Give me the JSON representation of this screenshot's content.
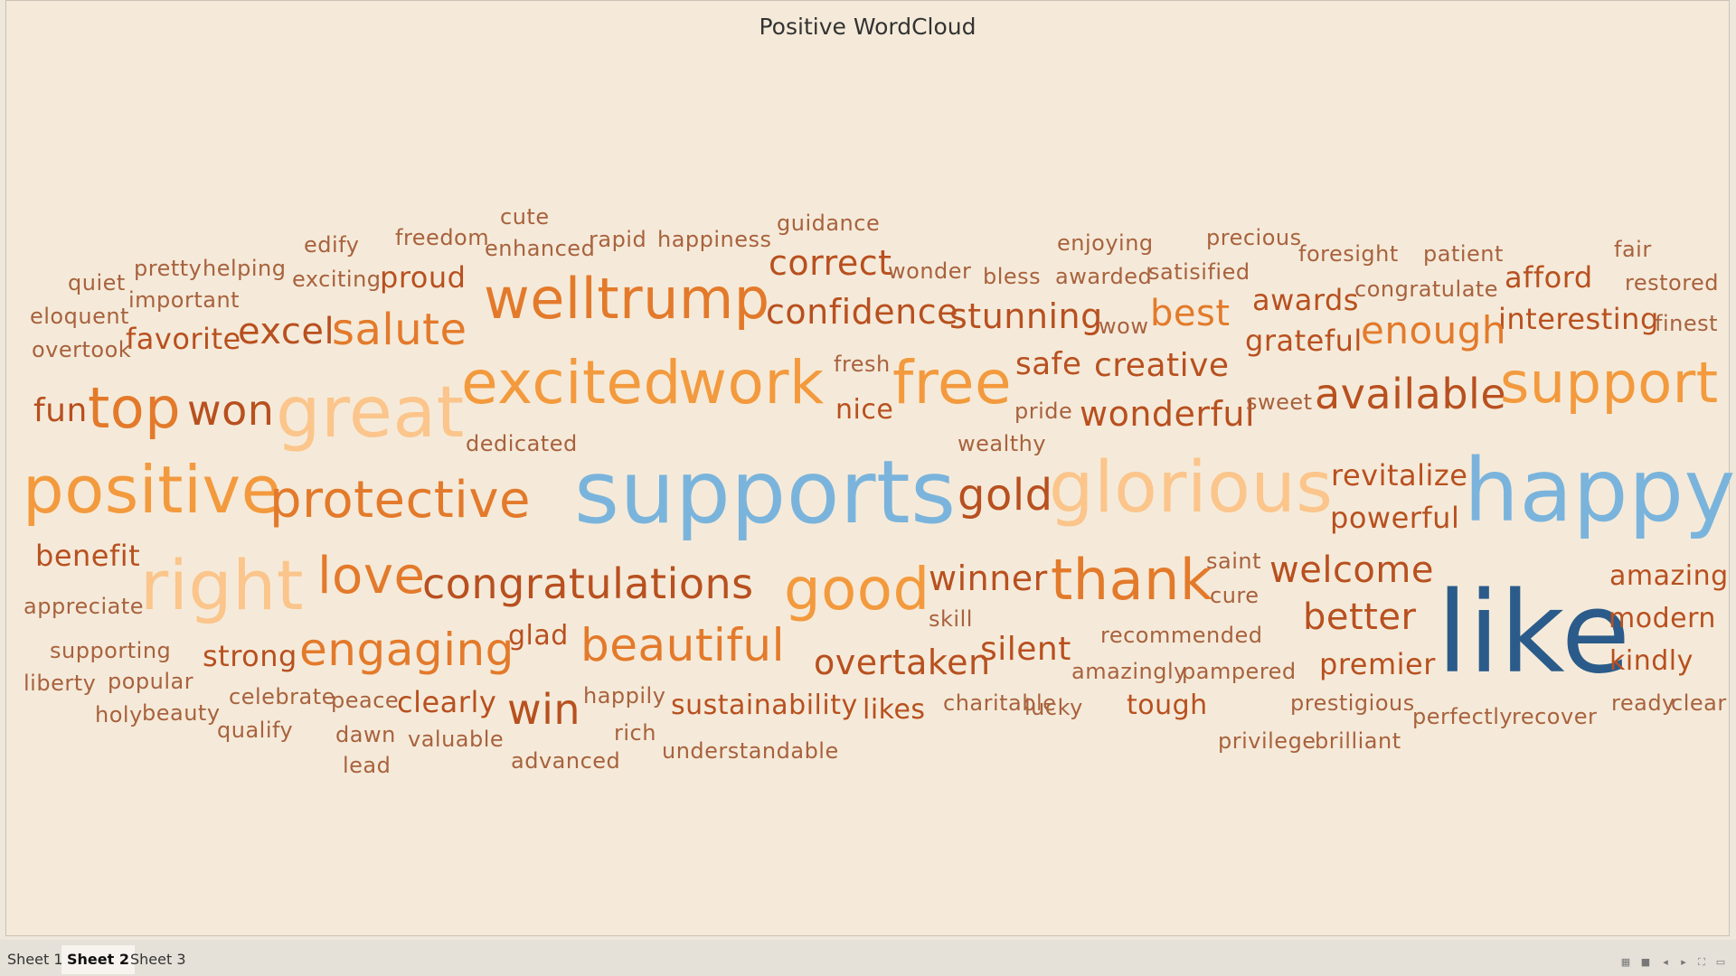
{
  "title": "Positive WordCloud",
  "tabs": [
    {
      "label": "Sheet 1",
      "active": false
    },
    {
      "label": "Sheet 2",
      "active": true
    },
    {
      "label": "Sheet 3",
      "active": false
    }
  ],
  "words": [
    {
      "text": "cute",
      "size": "small"
    },
    {
      "text": "guidance",
      "size": "small"
    },
    {
      "text": "freedom",
      "size": "small"
    },
    {
      "text": "edify",
      "size": "small"
    },
    {
      "text": "enhanced",
      "size": "small"
    },
    {
      "text": "rapid",
      "size": "small"
    },
    {
      "text": "happiness",
      "size": "small"
    },
    {
      "text": "enjoying",
      "size": "small"
    },
    {
      "text": "precious",
      "size": "small"
    },
    {
      "text": "foresight",
      "size": "small"
    },
    {
      "text": "patient",
      "size": "small"
    },
    {
      "text": "fair",
      "size": "small"
    },
    {
      "text": "quiet",
      "size": "small"
    },
    {
      "text": "pretty",
      "size": "small"
    },
    {
      "text": "helping",
      "size": "small"
    },
    {
      "text": "exciting",
      "size": "small"
    },
    {
      "text": "proud",
      "size": "medium"
    },
    {
      "text": "correct",
      "size": "medium"
    },
    {
      "text": "wonder",
      "size": "small"
    },
    {
      "text": "bless",
      "size": "small"
    },
    {
      "text": "awarded",
      "size": "small"
    },
    {
      "text": "satisified",
      "size": "small"
    },
    {
      "text": "congratulate",
      "size": "small"
    },
    {
      "text": "afford",
      "size": "medium"
    },
    {
      "text": "restored",
      "size": "small"
    },
    {
      "text": "important",
      "size": "small"
    },
    {
      "text": "eloquent",
      "size": "small"
    },
    {
      "text": "welltrump",
      "size": "large"
    },
    {
      "text": "confidence",
      "size": "medium"
    },
    {
      "text": "stunning",
      "size": "medium"
    },
    {
      "text": "wow",
      "size": "small"
    },
    {
      "text": "best",
      "size": "medium"
    },
    {
      "text": "awards",
      "size": "medium"
    },
    {
      "text": "interesting",
      "size": "medium"
    },
    {
      "text": "finest",
      "size": "small"
    },
    {
      "text": "favorite",
      "size": "medium"
    },
    {
      "text": "excel",
      "size": "medium"
    },
    {
      "text": "salute",
      "size": "large"
    },
    {
      "text": "overtook",
      "size": "small"
    },
    {
      "text": "grateful",
      "size": "medium"
    },
    {
      "text": "enough",
      "size": "medium"
    },
    {
      "text": "fresh",
      "size": "small"
    },
    {
      "text": "safe",
      "size": "medium"
    },
    {
      "text": "creative",
      "size": "medium"
    },
    {
      "text": "fun",
      "size": "medium"
    },
    {
      "text": "top",
      "size": "large"
    },
    {
      "text": "won",
      "size": "medium"
    },
    {
      "text": "great",
      "size": "xlarge"
    },
    {
      "text": "excited",
      "size": "large"
    },
    {
      "text": "work",
      "size": "large"
    },
    {
      "text": "nice",
      "size": "medium"
    },
    {
      "text": "free",
      "size": "large"
    },
    {
      "text": "pride",
      "size": "small"
    },
    {
      "text": "wonderful",
      "size": "medium"
    },
    {
      "text": "sweet",
      "size": "small"
    },
    {
      "text": "available",
      "size": "large"
    },
    {
      "text": "support",
      "size": "large"
    },
    {
      "text": "dedicated",
      "size": "small"
    },
    {
      "text": "wealthy",
      "size": "small"
    },
    {
      "text": "revitalize",
      "size": "medium"
    },
    {
      "text": "positive",
      "size": "xlarge"
    },
    {
      "text": "protective",
      "size": "large"
    },
    {
      "text": "supports",
      "size": "xxlarge"
    },
    {
      "text": "gold",
      "size": "large"
    },
    {
      "text": "glorious",
      "size": "xlarge"
    },
    {
      "text": "powerful",
      "size": "medium"
    },
    {
      "text": "happy",
      "size": "xxlarge"
    },
    {
      "text": "benefit",
      "size": "medium"
    },
    {
      "text": "saint",
      "size": "small"
    },
    {
      "text": "right",
      "size": "xlarge"
    },
    {
      "text": "love",
      "size": "large"
    },
    {
      "text": "congratulations",
      "size": "large"
    },
    {
      "text": "good",
      "size": "xlarge"
    },
    {
      "text": "winner",
      "size": "medium"
    },
    {
      "text": "thank",
      "size": "xlarge"
    },
    {
      "text": "welcome",
      "size": "medium"
    },
    {
      "text": "amazing",
      "size": "medium"
    },
    {
      "text": "appreciate",
      "size": "small"
    },
    {
      "text": "cure",
      "size": "small"
    },
    {
      "text": "skill",
      "size": "small"
    },
    {
      "text": "better",
      "size": "medium"
    },
    {
      "text": "like",
      "size": "xxxlarge"
    },
    {
      "text": "modern",
      "size": "medium"
    },
    {
      "text": "supporting",
      "size": "small"
    },
    {
      "text": "strong",
      "size": "medium"
    },
    {
      "text": "engaging",
      "size": "large"
    },
    {
      "text": "glad",
      "size": "medium"
    },
    {
      "text": "beautiful",
      "size": "large"
    },
    {
      "text": "recommended",
      "size": "small"
    },
    {
      "text": "silent",
      "size": "medium"
    },
    {
      "text": "liberty",
      "size": "small"
    },
    {
      "text": "popular",
      "size": "small"
    },
    {
      "text": "overtaken",
      "size": "medium"
    },
    {
      "text": "amazingly",
      "size": "small"
    },
    {
      "text": "pampered",
      "size": "small"
    },
    {
      "text": "premier",
      "size": "medium"
    },
    {
      "text": "kindly",
      "size": "medium"
    },
    {
      "text": "holy",
      "size": "small"
    },
    {
      "text": "beauty",
      "size": "small"
    },
    {
      "text": "celebrate",
      "size": "small"
    },
    {
      "text": "peace",
      "size": "small"
    },
    {
      "text": "clearly",
      "size": "medium"
    },
    {
      "text": "happily",
      "size": "small"
    },
    {
      "text": "win",
      "size": "large"
    },
    {
      "text": "sustainability",
      "size": "medium"
    },
    {
      "text": "likes",
      "size": "medium"
    },
    {
      "text": "charitable",
      "size": "small"
    },
    {
      "text": "lucky",
      "size": "small"
    },
    {
      "text": "tough",
      "size": "medium"
    },
    {
      "text": "prestigious",
      "size": "small"
    },
    {
      "text": "perfectly",
      "size": "small"
    },
    {
      "text": "recover",
      "size": "small"
    },
    {
      "text": "ready",
      "size": "small"
    },
    {
      "text": "clear",
      "size": "small"
    },
    {
      "text": "qualify",
      "size": "small"
    },
    {
      "text": "dawn",
      "size": "small"
    },
    {
      "text": "valuable",
      "size": "small"
    },
    {
      "text": "rich",
      "size": "small"
    },
    {
      "text": "understandable",
      "size": "small"
    },
    {
      "text": "privilege",
      "size": "small"
    },
    {
      "text": "brilliant",
      "size": "small"
    },
    {
      "text": "lead",
      "size": "small"
    },
    {
      "text": "advanced",
      "size": "small"
    }
  ]
}
